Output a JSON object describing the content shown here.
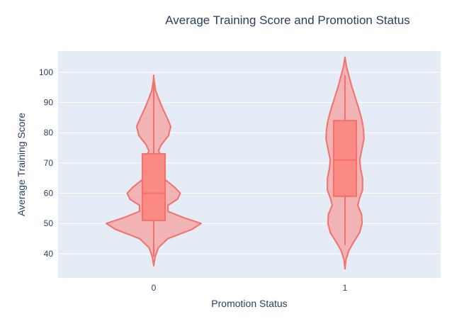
{
  "chart_data": {
    "type": "violin",
    "title": "Average Training Score and Promotion Status",
    "xlabel": "Promotion Status",
    "ylabel": "Average Training Score",
    "categories": [
      "0",
      "1"
    ],
    "ylim": [
      32,
      107
    ],
    "yticks": [
      40,
      50,
      60,
      70,
      80,
      90,
      100
    ],
    "grid": true,
    "legend": "none",
    "colors": {
      "violin_line": "#f4706a",
      "violin_fill": "#f4a09c",
      "box_fill": "#fb8a82",
      "plot_bg": "#e5ecf6",
      "grid": "#ffffff"
    },
    "series": [
      {
        "category": "0",
        "box": {
          "q1": 51,
          "median": 60,
          "q3": 73,
          "whisker_low": 39,
          "whisker_high": 99,
          "min": 36,
          "max": 99
        },
        "density": [
          [
            36,
            0.0
          ],
          [
            39,
            0.03
          ],
          [
            42,
            0.1
          ],
          [
            45,
            0.3
          ],
          [
            48,
            0.8
          ],
          [
            50,
            1.0
          ],
          [
            52,
            0.62
          ],
          [
            54,
            0.3
          ],
          [
            56,
            0.3
          ],
          [
            58,
            0.5
          ],
          [
            60,
            0.56
          ],
          [
            62,
            0.44
          ],
          [
            65,
            0.2
          ],
          [
            68,
            0.2
          ],
          [
            70,
            0.22
          ],
          [
            72,
            0.17
          ],
          [
            74,
            0.1
          ],
          [
            76,
            0.16
          ],
          [
            79,
            0.31
          ],
          [
            82,
            0.36
          ],
          [
            85,
            0.28
          ],
          [
            88,
            0.19
          ],
          [
            91,
            0.11
          ],
          [
            94,
            0.04
          ],
          [
            97,
            0.01
          ],
          [
            99,
            0.0
          ]
        ]
      },
      {
        "category": "1",
        "box": {
          "q1": 59,
          "median": 71,
          "q3": 84,
          "whisker_low": 43,
          "whisker_high": 99,
          "min": 35,
          "max": 105
        },
        "density": [
          [
            35,
            0.0
          ],
          [
            38,
            0.02
          ],
          [
            41,
            0.08
          ],
          [
            44,
            0.19
          ],
          [
            47,
            0.31
          ],
          [
            50,
            0.36
          ],
          [
            53,
            0.35
          ],
          [
            56,
            0.27
          ],
          [
            58,
            0.3
          ],
          [
            61,
            0.37
          ],
          [
            65,
            0.37
          ],
          [
            68,
            0.33
          ],
          [
            71,
            0.31
          ],
          [
            74,
            0.35
          ],
          [
            78,
            0.4
          ],
          [
            81,
            0.39
          ],
          [
            84,
            0.36
          ],
          [
            87,
            0.31
          ],
          [
            90,
            0.25
          ],
          [
            93,
            0.19
          ],
          [
            96,
            0.13
          ],
          [
            99,
            0.08
          ],
          [
            102,
            0.03
          ],
          [
            105,
            0.0
          ]
        ]
      }
    ]
  }
}
